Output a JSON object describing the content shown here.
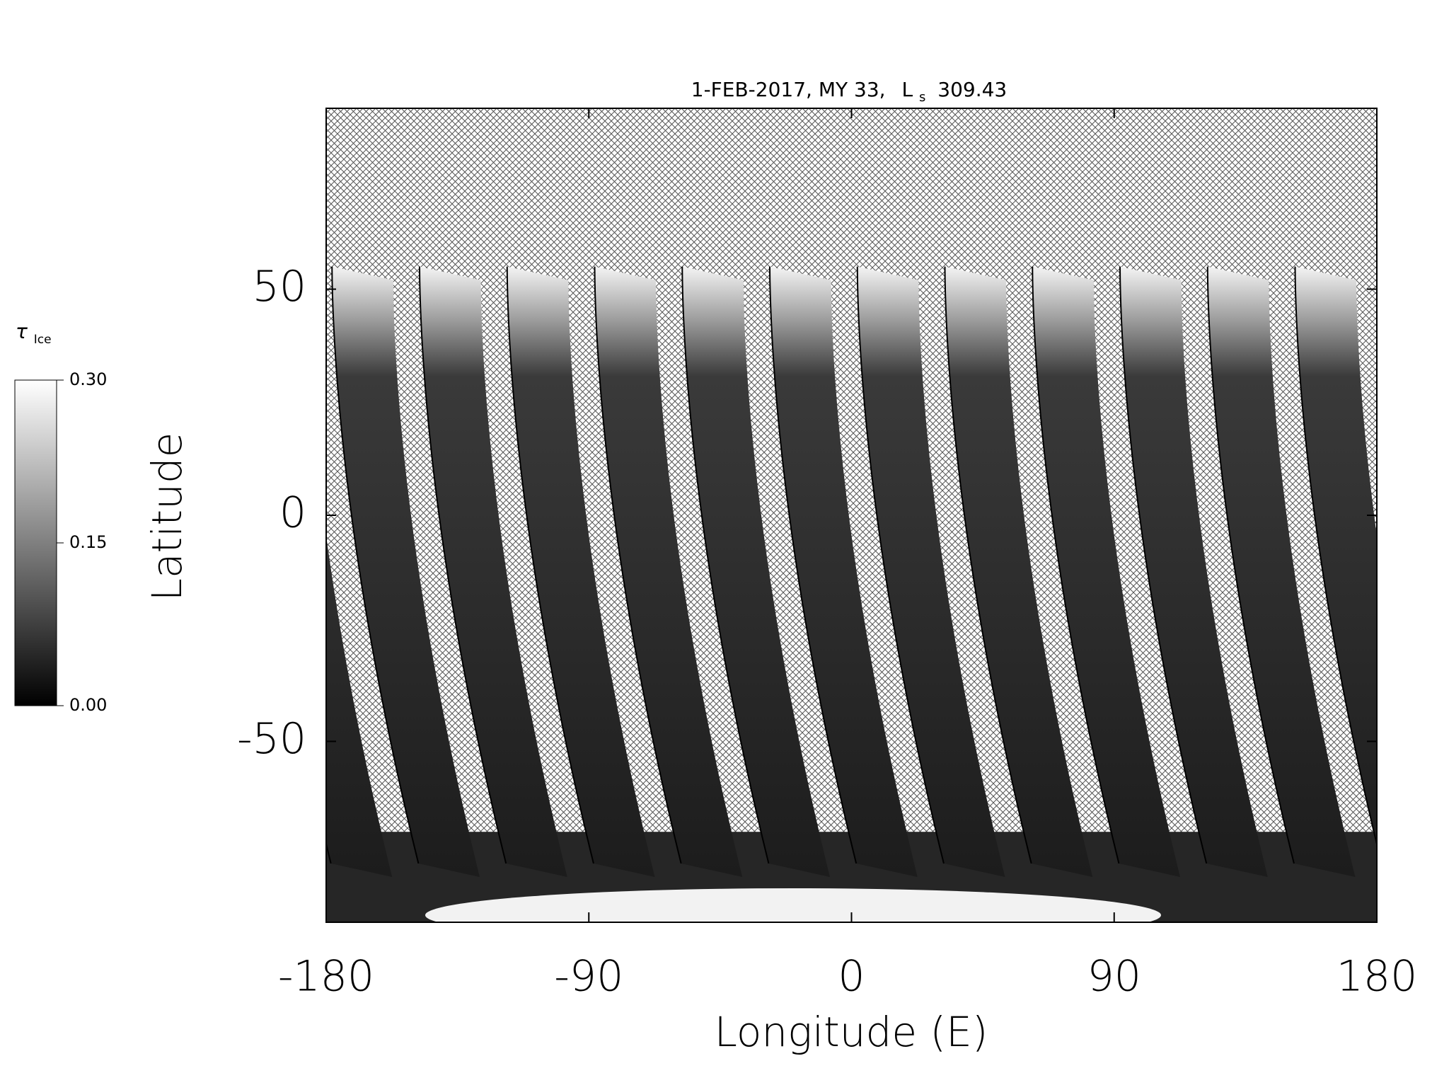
{
  "chart_data": {
    "type": "map",
    "title": "1-FEB-2017, MY 33,",
    "ls_symbol": "L",
    "ls_sub": "s",
    "ls_value": "309.43",
    "xlabel": "Longitude (E)",
    "ylabel": "Latitude",
    "xlim": [
      -180,
      180
    ],
    "xticks": [
      -180,
      -90,
      0,
      90,
      180
    ],
    "ylim": [
      -90,
      90
    ],
    "yticks": [
      -50,
      0,
      50
    ],
    "colorbar": {
      "label": "τ",
      "label_sub": "Ice",
      "lim": [
        0,
        0.3
      ],
      "ticks": [
        {
          "value": 0,
          "label": "0.00"
        },
        {
          "value": 0.15,
          "label": "0.15"
        },
        {
          "value": 0.3,
          "label": "0.30"
        }
      ]
    }
  }
}
